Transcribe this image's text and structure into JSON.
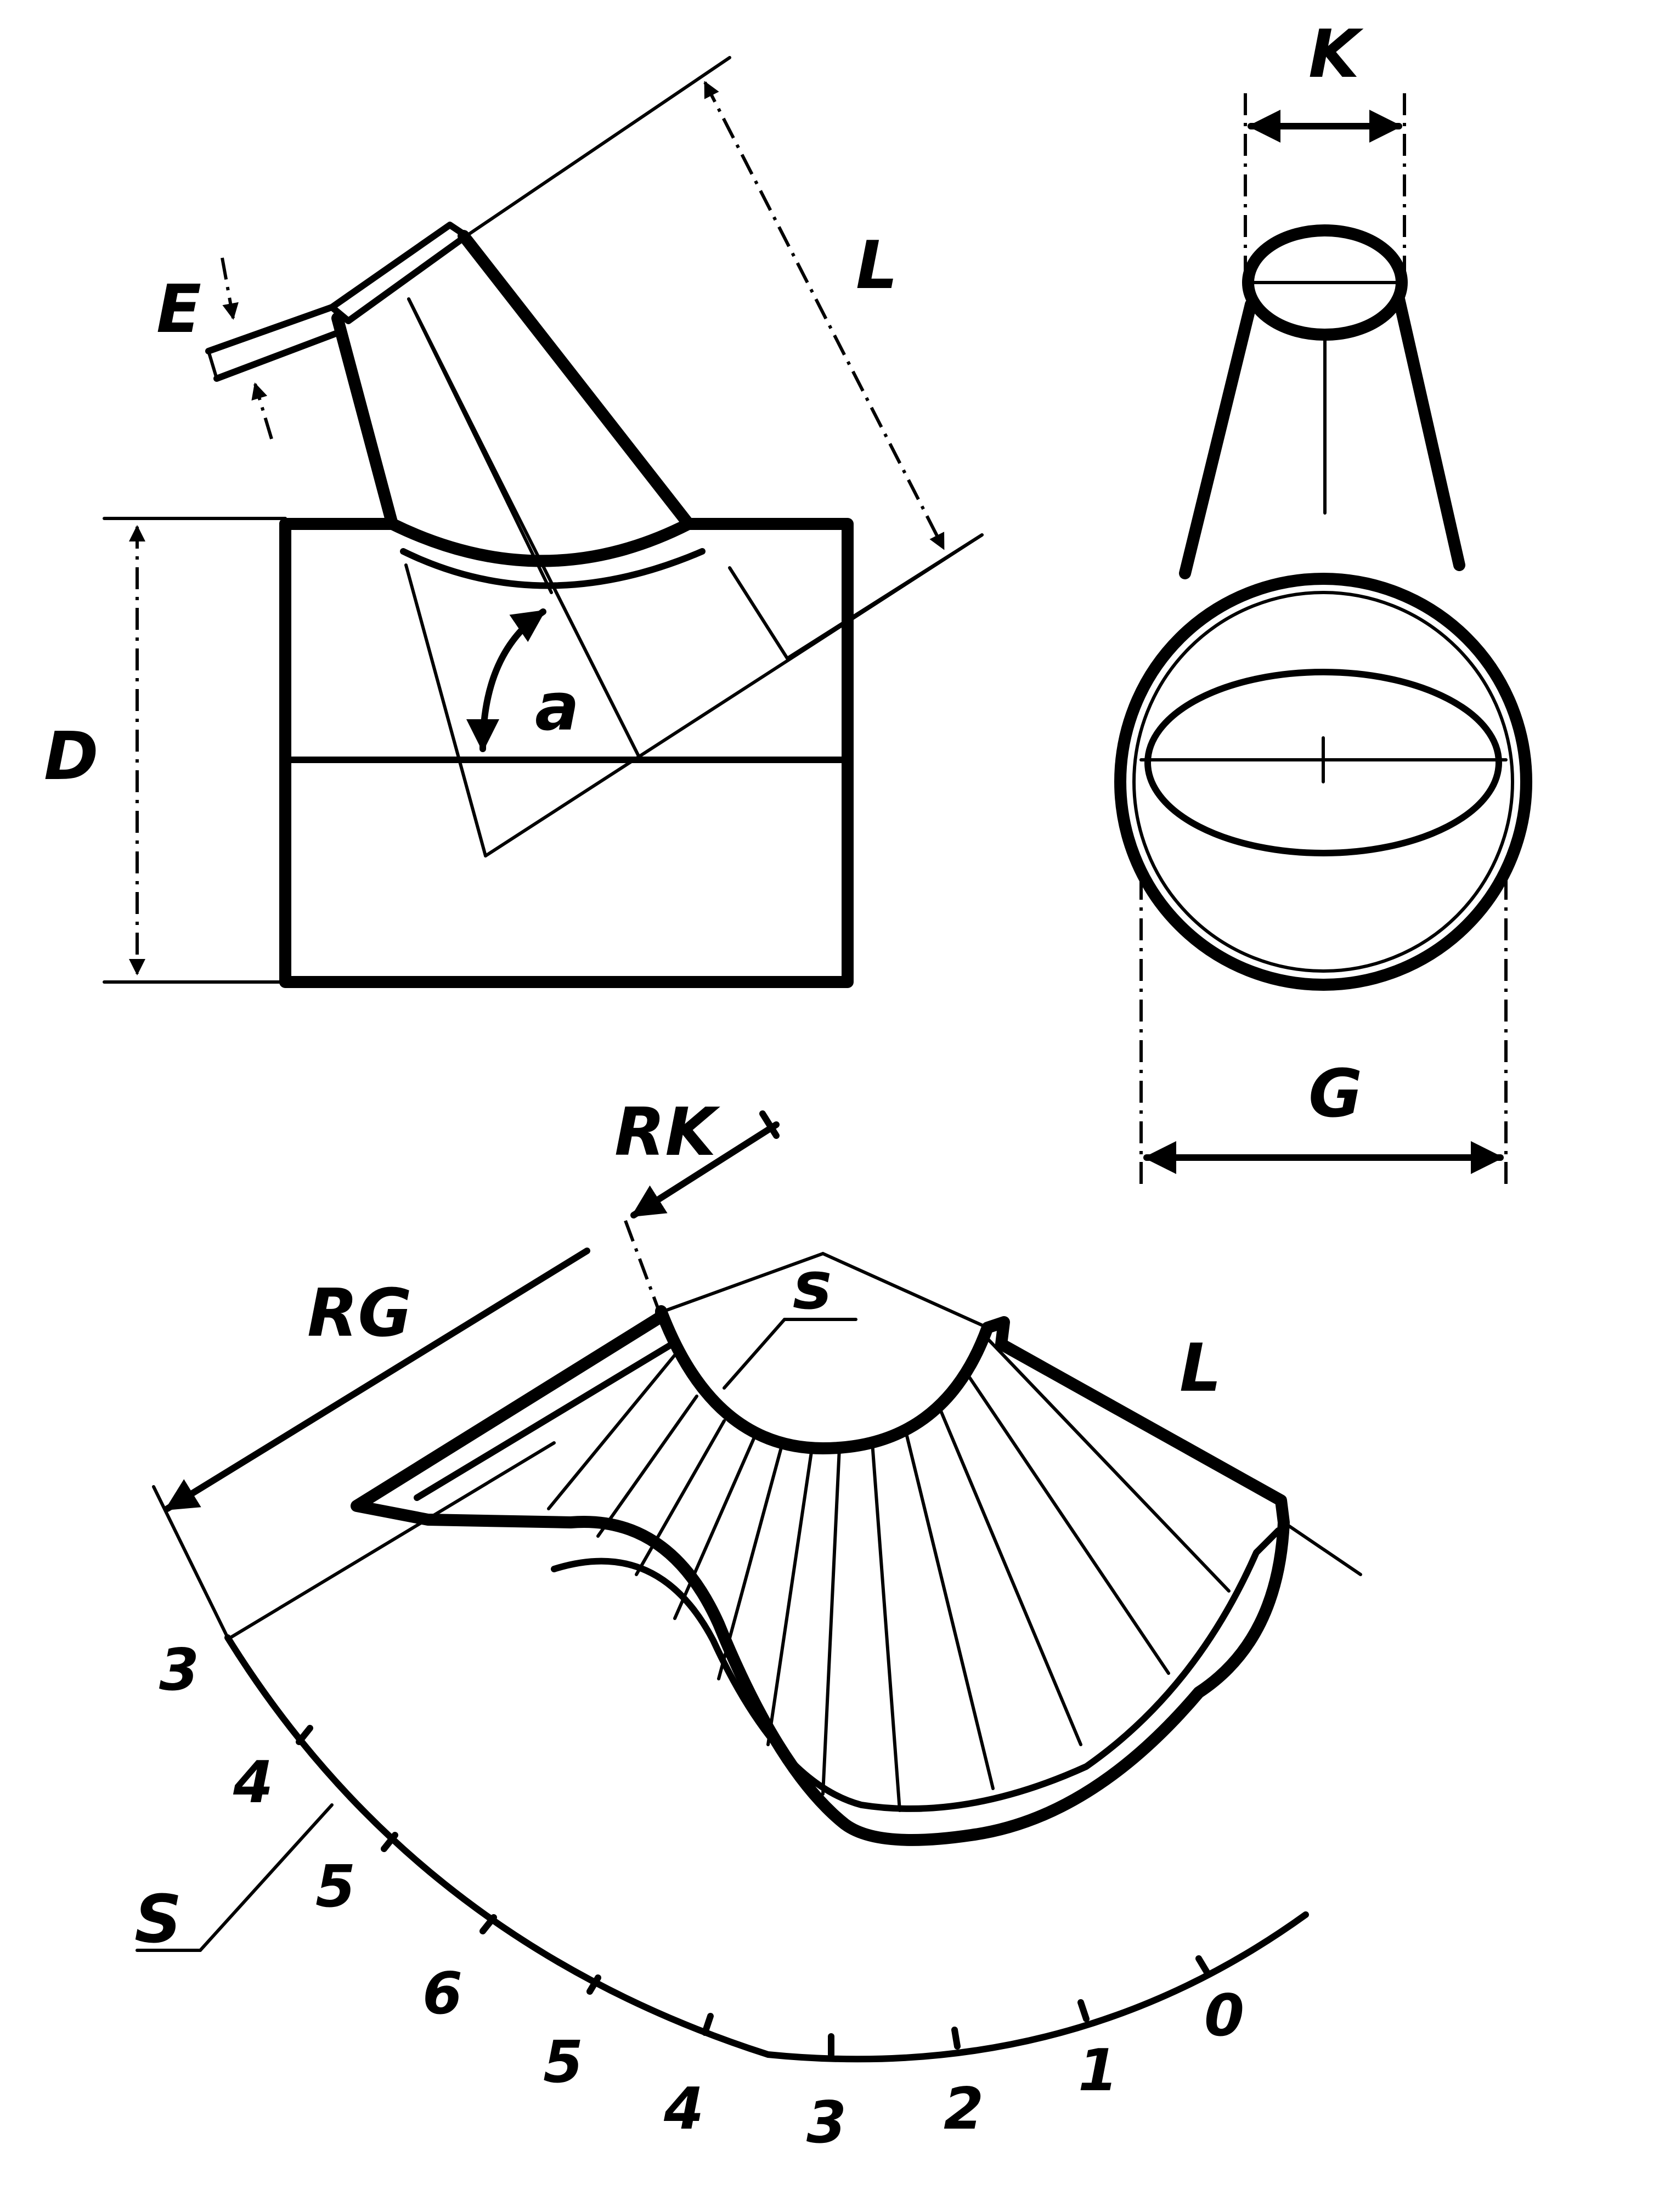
{
  "labels": {
    "E": "E",
    "L_top": "L",
    "D": "D",
    "a": "a",
    "K": "K",
    "G": "G",
    "RK": "RK",
    "RG": "RG",
    "s": "s",
    "L_bottom": "L",
    "S": "S"
  },
  "scale_numbers": [
    "3",
    "4",
    "5",
    "6",
    "5",
    "4",
    "3",
    "2",
    "1",
    "0"
  ]
}
